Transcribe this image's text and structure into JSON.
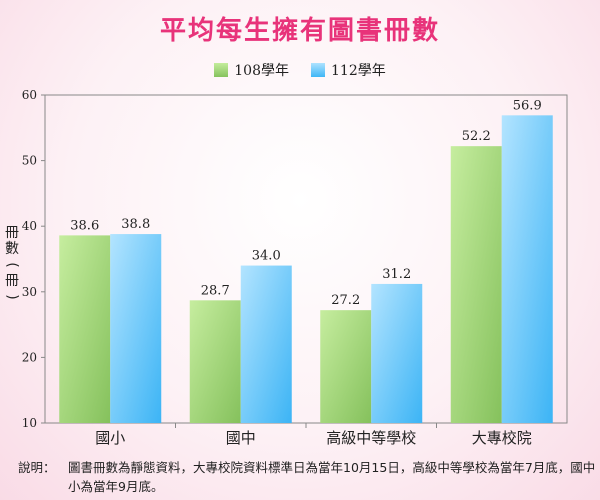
{
  "chart_data": {
    "type": "bar",
    "title": "平均每生擁有圖書冊數",
    "ylabel_chars": [
      "冊",
      "數"
    ],
    "ylabel_open": "(",
    "ylabel_close": ")",
    "unit": "冊",
    "categories": [
      "國小",
      "國中",
      "高級中等學校",
      "大專校院"
    ],
    "series": [
      {
        "name": "108學年",
        "values": [
          38.6,
          28.7,
          27.2,
          52.2
        ],
        "color_top": "#c6ed9f",
        "color_bottom": "#85c15c"
      },
      {
        "name": "112學年",
        "values": [
          38.8,
          34.0,
          31.2,
          56.9
        ],
        "color_top": "#b3e4ff",
        "color_bottom": "#3cb4f5"
      }
    ],
    "value_labels": [
      [
        "38.6",
        "28.7",
        "27.2",
        "52.2"
      ],
      [
        "38.8",
        "34.0",
        "31.2",
        "56.9"
      ]
    ],
    "ylim": [
      10,
      60
    ],
    "yticks": [
      10,
      20,
      30,
      40,
      50,
      60
    ],
    "legend_position": "top-center",
    "grid": false
  },
  "note": {
    "label": "說明：",
    "text": "圖書冊數為靜態資料，大專校院資料標準日為當年10月15日，高級中等學校為當年7月底，國中小為當年9月底。"
  },
  "colors": {
    "title": "#e8337a",
    "axis": "#888888"
  }
}
